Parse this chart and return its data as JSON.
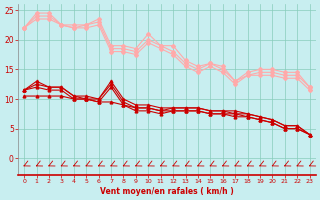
{
  "xlabel": "Vent moyen/en rafales ( km/h )",
  "xlim": [
    -0.5,
    23.5
  ],
  "ylim": [
    0,
    26
  ],
  "yticks": [
    0,
    5,
    10,
    15,
    20,
    25
  ],
  "xticks": [
    0,
    1,
    2,
    3,
    4,
    5,
    6,
    7,
    8,
    9,
    10,
    11,
    12,
    13,
    14,
    15,
    16,
    17,
    18,
    19,
    20,
    21,
    22,
    23
  ],
  "bg_color": "#c8eef0",
  "grid_color": "#88ccbb",
  "x": [
    0,
    1,
    2,
    3,
    4,
    5,
    6,
    7,
    8,
    9,
    10,
    11,
    12,
    13,
    14,
    15,
    16,
    17,
    18,
    19,
    20,
    21,
    22,
    23
  ],
  "lines_pink": [
    [
      22.0,
      24.5,
      24.5,
      22.5,
      22.0,
      22.5,
      23.5,
      19.0,
      19.0,
      18.5,
      21.0,
      19.0,
      19.0,
      16.5,
      15.5,
      16.0,
      15.5,
      13.0,
      14.5,
      15.0,
      15.0,
      14.5,
      14.5,
      12.0
    ],
    [
      22.0,
      24.0,
      24.0,
      22.5,
      22.5,
      22.5,
      23.0,
      18.5,
      18.5,
      18.0,
      20.0,
      19.0,
      18.0,
      16.0,
      15.0,
      16.0,
      15.0,
      13.0,
      14.0,
      14.5,
      14.5,
      14.0,
      14.0,
      12.0
    ],
    [
      22.0,
      23.5,
      23.5,
      22.5,
      22.0,
      22.0,
      22.5,
      18.0,
      18.0,
      17.5,
      19.5,
      18.5,
      17.5,
      15.5,
      14.5,
      15.5,
      14.5,
      12.5,
      14.0,
      14.0,
      14.0,
      13.5,
      13.5,
      11.5
    ]
  ],
  "lines_red": [
    [
      11.5,
      13.0,
      12.0,
      12.0,
      10.5,
      10.5,
      10.0,
      13.0,
      10.0,
      9.0,
      9.0,
      8.5,
      8.5,
      8.5,
      8.5,
      8.0,
      8.0,
      8.0,
      7.5,
      7.0,
      6.5,
      5.5,
      5.5,
      4.0
    ],
    [
      11.5,
      12.5,
      12.0,
      12.0,
      10.5,
      10.0,
      10.0,
      12.5,
      9.5,
      8.5,
      8.5,
      8.0,
      8.5,
      8.5,
      8.5,
      8.0,
      8.0,
      7.5,
      7.5,
      7.0,
      6.5,
      5.5,
      5.5,
      4.0
    ],
    [
      11.5,
      12.0,
      11.5,
      11.5,
      10.0,
      10.0,
      9.5,
      12.0,
      9.0,
      8.0,
      8.0,
      7.5,
      8.0,
      8.0,
      8.0,
      7.5,
      7.5,
      7.5,
      7.0,
      6.5,
      6.0,
      5.0,
      5.0,
      4.0
    ],
    [
      10.5,
      10.5,
      10.5,
      10.5,
      10.0,
      10.0,
      9.5,
      9.5,
      9.0,
      8.5,
      8.5,
      8.0,
      8.0,
      8.0,
      8.0,
      7.5,
      7.5,
      7.0,
      7.0,
      6.5,
      6.0,
      5.0,
      5.0,
      4.0
    ]
  ],
  "pink_color": "#ffaaaa",
  "red_color": "#cc0000",
  "tick_color": "#cc0000",
  "label_color": "#cc0000",
  "arrow_color": "#cc0000",
  "spine_bottom_color": "#cc0000",
  "spine_left_color": "#888888"
}
